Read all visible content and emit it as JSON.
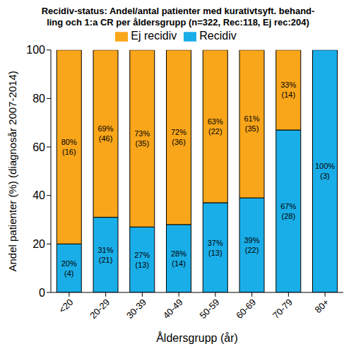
{
  "chart_data": {
    "type": "bar",
    "title": "Recidiv-status: Andel/antal patienter med kurativtsyft. behand-\nling och 1:a CR per åldersgrupp (n=322, Rec:118, Ej rec:204)",
    "x_label": "Åldersgrupp (år)",
    "y_label": "Andel patienter (%) (diagnosår 2007-2014)",
    "categories": [
      "<20",
      "20-29",
      "30-39",
      "40-49",
      "50-59",
      "60-69",
      "70-79",
      "80+"
    ],
    "series": [
      {
        "name": "Recidiv",
        "color": "#1aaee8",
        "values": [
          20,
          31,
          27,
          28,
          37,
          39,
          67,
          100
        ],
        "value_labels": [
          "20%\n(4)",
          "31%\n(21)",
          "27%\n(13)",
          "28%\n(14)",
          "37%\n(13)",
          "39%\n(22)",
          "67%\n(28)",
          "100%\n(3)"
        ],
        "counts": [
          4,
          21,
          13,
          14,
          13,
          22,
          28,
          3
        ]
      },
      {
        "name": "Ej recidiv",
        "color": "#f9a61a",
        "values": [
          80,
          69,
          73,
          72,
          63,
          61,
          33,
          0
        ],
        "value_labels": [
          "80%\n(16)",
          "69%\n(46)",
          "73%\n(35)",
          "72%\n(36)",
          "63%\n(22)",
          "61%\n(35)",
          "33%\n(14)",
          null
        ],
        "counts": [
          16,
          46,
          35,
          36,
          22,
          35,
          14,
          0
        ]
      }
    ],
    "ylim": [
      0,
      100
    ],
    "yticks": [
      0,
      20,
      40,
      60,
      80,
      100
    ],
    "stacked": true,
    "data_labels": true,
    "grid": false,
    "legend": "top"
  }
}
